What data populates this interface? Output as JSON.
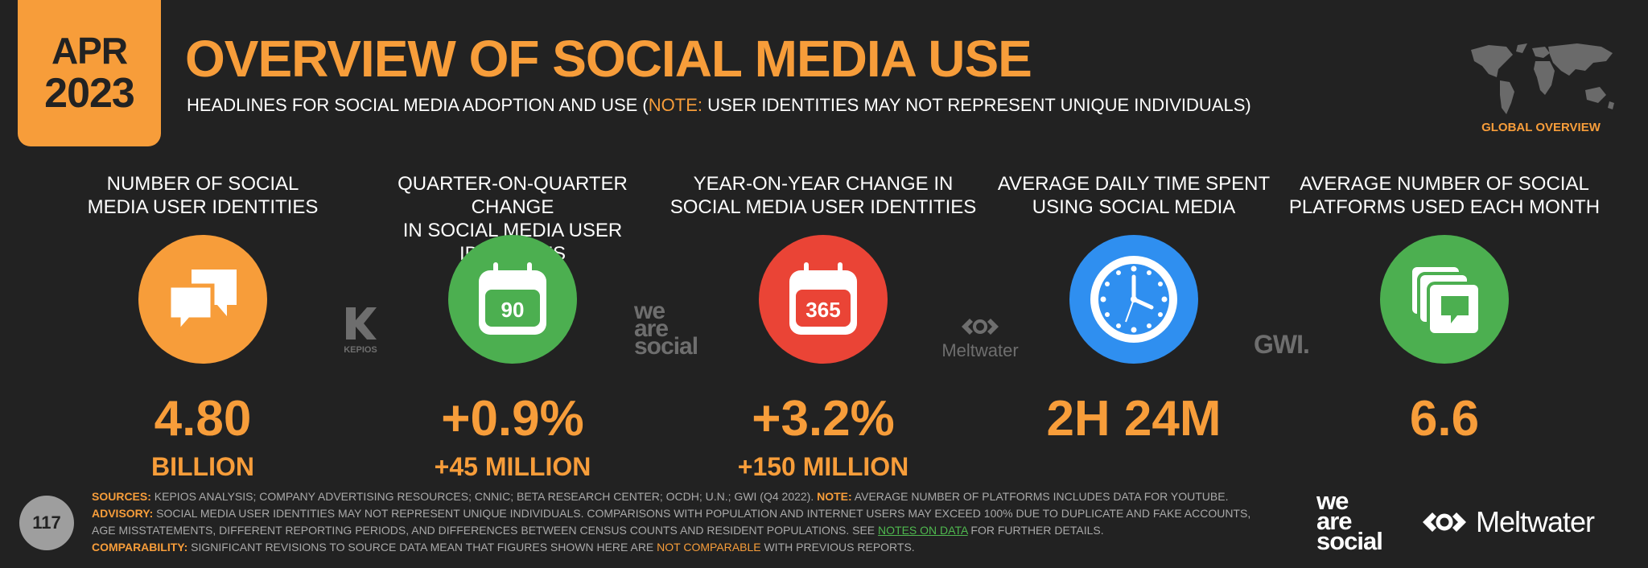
{
  "header": {
    "date_month": "APR",
    "date_year": "2023",
    "title": "OVERVIEW OF SOCIAL MEDIA USE",
    "subtitle_pre": "HEADLINES FOR SOCIAL MEDIA ADOPTION AND USE (",
    "subtitle_note": "NOTE:",
    "subtitle_post": " USER IDENTITIES MAY NOT REPRESENT UNIQUE INDIVIDUALS)",
    "global_label": "GLOBAL OVERVIEW"
  },
  "metrics": [
    {
      "label_line1": "NUMBER OF SOCIAL",
      "label_line2": "MEDIA USER IDENTITIES",
      "value": "4.80",
      "sub": "BILLION",
      "icon": "speech-bubbles-icon",
      "color": "#f79d3a"
    },
    {
      "label_line1": "QUARTER-ON-QUARTER CHANGE",
      "label_line2": "IN SOCIAL MEDIA USER IDENTITIES",
      "value": "+0.9%",
      "sub": "+45 MILLION",
      "icon": "calendar-icon",
      "icon_text": "90",
      "color": "#4caf50"
    },
    {
      "label_line1": "YEAR-ON-YEAR CHANGE IN",
      "label_line2": "SOCIAL MEDIA USER IDENTITIES",
      "value": "+3.2%",
      "sub": "+150 MILLION",
      "icon": "calendar-icon",
      "icon_text": "365",
      "color": "#ea4436"
    },
    {
      "label_line1": "AVERAGE DAILY TIME SPENT",
      "label_line2": "USING SOCIAL MEDIA",
      "value": "2H 24M",
      "sub": "",
      "icon": "clock-icon",
      "color": "#2f8ff0"
    },
    {
      "label_line1": "AVERAGE NUMBER OF SOCIAL",
      "label_line2": "PLATFORMS USED EACH MONTH",
      "value": "6.6",
      "sub": "",
      "icon": "stacked-cards-icon",
      "color": "#4caf50"
    }
  ],
  "partners": {
    "kepios": "KEPIOS",
    "was_line1": "we",
    "was_line2": "are",
    "was_line3": "social",
    "meltwater": "Meltwater",
    "gwi": "GWI."
  },
  "footer": {
    "sources_label": "SOURCES:",
    "sources_text": " KEPIOS ANALYSIS; COMPANY ADVERTISING RESOURCES; CNNIC; BETA RESEARCH CENTER; OCDH; U.N.; GWI (Q4 2022).",
    "note_label": "NOTE:",
    "note_text": " AVERAGE NUMBER OF PLATFORMS INCLUDES DATA FOR YOUTUBE.",
    "advisory_label": "ADVISORY:",
    "advisory_text": " SOCIAL MEDIA USER IDENTITIES MAY NOT REPRESENT UNIQUE INDIVIDUALS. COMPARISONS WITH POPULATION AND INTERNET USERS MAY EXCEED 100% DUE TO DUPLICATE AND FAKE ACCOUNTS, AGE MISSTATEMENTS, DIFFERENT REPORTING PERIODS, AND DIFFERENCES BETWEEN CENSUS COUNTS AND RESIDENT POPULATIONS. SEE ",
    "notes_link": "NOTES ON DATA",
    "advisory_tail": " FOR FURTHER DETAILS.",
    "comparability_label": "COMPARABILITY:",
    "comparability_text": " SIGNIFICANT REVISIONS TO SOURCE DATA MEAN THAT FIGURES SHOWN HERE ARE ",
    "not_comparable": "NOT COMPARABLE",
    "comparability_tail": " WITH PREVIOUS REPORTS.",
    "page_number": "117"
  },
  "brand": {
    "was_line1": "we",
    "was_line2": "are",
    "was_line3": "social",
    "meltwater": "Meltwater"
  }
}
